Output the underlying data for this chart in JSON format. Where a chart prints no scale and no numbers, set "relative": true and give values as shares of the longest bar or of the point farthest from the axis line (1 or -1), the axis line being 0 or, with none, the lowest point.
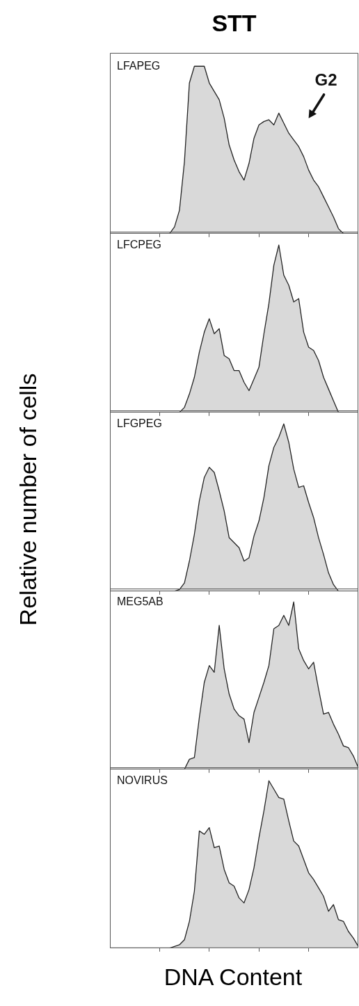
{
  "chart_data": [
    {
      "type": "area",
      "title": "STT",
      "relative": true,
      "color": "#d9d9d9",
      "annotations": [
        "LFAPEG",
        "G2"
      ],
      "categories": [
        null,
        null,
        null,
        null,
        null,
        null,
        null,
        null,
        null,
        null,
        null,
        null,
        null,
        null,
        null,
        null,
        null,
        null,
        null,
        null,
        null,
        null,
        null,
        null,
        null,
        null,
        null,
        null,
        null,
        null,
        null,
        null,
        null,
        null,
        null,
        null,
        null,
        null,
        null,
        null,
        null,
        null,
        null,
        null,
        null,
        null,
        null,
        null,
        null,
        null,
        null
      ],
      "values": [
        0,
        0,
        0,
        0,
        0,
        0,
        0,
        0,
        0,
        0,
        0,
        0,
        0,
        0.04,
        0.14,
        0.43,
        0.9,
        1,
        1,
        1,
        0.9,
        0.85,
        0.8,
        0.69,
        0.53,
        0.44,
        0.37,
        0.32,
        0.42,
        0.57,
        0.65,
        0.67,
        0.68,
        0.65,
        0.72,
        0.66,
        0.6,
        0.56,
        0.52,
        0.46,
        0.38,
        0.32,
        0.28,
        0.22,
        0.16,
        0.1,
        0.03,
        0,
        0,
        0,
        0
      ]
    },
    {
      "type": "area",
      "relative": true,
      "color": "#d9d9d9",
      "annotations": [
        "LFCPEG"
      ],
      "categories": [
        null,
        null,
        null,
        null,
        null,
        null,
        null,
        null,
        null,
        null,
        null,
        null,
        null,
        null,
        null,
        null,
        null,
        null,
        null,
        null,
        null,
        null,
        null,
        null,
        null,
        null,
        null,
        null,
        null,
        null,
        null,
        null,
        null,
        null,
        null,
        null,
        null,
        null,
        null,
        null,
        null,
        null,
        null,
        null,
        null,
        null,
        null,
        null,
        null,
        null,
        null
      ],
      "values": [
        0,
        0,
        0,
        0,
        0,
        0,
        0,
        0,
        0,
        0,
        0,
        0,
        0,
        0,
        0,
        0.03,
        0.11,
        0.21,
        0.36,
        0.48,
        0.56,
        0.47,
        0.5,
        0.34,
        0.32,
        0.25,
        0.25,
        0.18,
        0.13,
        0.2,
        0.27,
        0.47,
        0.65,
        0.88,
        1,
        0.82,
        0.76,
        0.66,
        0.68,
        0.48,
        0.39,
        0.37,
        0.31,
        0.21,
        0.14,
        0.07,
        0,
        0,
        0,
        0,
        0
      ]
    },
    {
      "type": "area",
      "relative": true,
      "ylabel": "Relative number of cells",
      "color": "#d9d9d9",
      "annotations": [
        "LFGPEG"
      ],
      "categories": [
        null,
        null,
        null,
        null,
        null,
        null,
        null,
        null,
        null,
        null,
        null,
        null,
        null,
        null,
        null,
        null,
        null,
        null,
        null,
        null,
        null,
        null,
        null,
        null,
        null,
        null,
        null,
        null,
        null,
        null,
        null,
        null,
        null,
        null,
        null,
        null,
        null,
        null,
        null,
        null,
        null,
        null,
        null,
        null,
        null,
        null,
        null,
        null,
        null,
        null,
        null
      ],
      "values": [
        0,
        0,
        0,
        0,
        0,
        0,
        0,
        0,
        0,
        0,
        0,
        0,
        0,
        0,
        0.01,
        0.05,
        0.18,
        0.34,
        0.54,
        0.68,
        0.74,
        0.71,
        0.6,
        0.48,
        0.32,
        0.29,
        0.26,
        0.18,
        0.2,
        0.33,
        0.42,
        0.56,
        0.75,
        0.86,
        0.92,
        1,
        0.89,
        0.73,
        0.62,
        0.63,
        0.53,
        0.44,
        0.32,
        0.22,
        0.11,
        0.04,
        0,
        0,
        0,
        0,
        0
      ]
    },
    {
      "type": "area",
      "relative": true,
      "color": "#d9d9d9",
      "annotations": [
        "MEG5AB"
      ],
      "categories": [
        null,
        null,
        null,
        null,
        null,
        null,
        null,
        null,
        null,
        null,
        null,
        null,
        null,
        null,
        null,
        null,
        null,
        null,
        null,
        null,
        null,
        null,
        null,
        null,
        null,
        null,
        null,
        null,
        null,
        null,
        null,
        null,
        null,
        null,
        null,
        null,
        null,
        null,
        null,
        null,
        null,
        null,
        null,
        null,
        null,
        null,
        null,
        null,
        null,
        null,
        null
      ],
      "values": [
        0,
        0,
        0,
        0,
        0,
        0,
        0,
        0,
        0,
        0,
        0,
        0,
        0,
        0,
        0,
        0,
        0.06,
        0.07,
        0.31,
        0.52,
        0.62,
        0.58,
        0.86,
        0.6,
        0.45,
        0.36,
        0.32,
        0.3,
        0.16,
        0.34,
        0.43,
        0.52,
        0.62,
        0.84,
        0.86,
        0.92,
        0.86,
        1,
        0.72,
        0.65,
        0.6,
        0.64,
        0.48,
        0.33,
        0.34,
        0.27,
        0.21,
        0.14,
        0.13,
        0.08,
        0.01
      ]
    },
    {
      "type": "area",
      "relative": true,
      "xlabel": "DNA Content",
      "color": "#d9d9d9",
      "annotations": [
        "NOVIRUS"
      ],
      "categories": [
        null,
        null,
        null,
        null,
        null,
        null,
        null,
        null,
        null,
        null,
        null,
        null,
        null,
        null,
        null,
        null,
        null,
        null,
        null,
        null,
        null,
        null,
        null,
        null,
        null,
        null,
        null,
        null,
        null,
        null,
        null,
        null,
        null,
        null,
        null,
        null,
        null,
        null,
        null,
        null,
        null,
        null,
        null,
        null,
        null,
        null,
        null,
        null,
        null,
        null,
        null
      ],
      "values": [
        0,
        0,
        0,
        0,
        0,
        0,
        0,
        0,
        0,
        0,
        0,
        0,
        0,
        0.01,
        0.02,
        0.05,
        0.16,
        0.34,
        0.7,
        0.68,
        0.72,
        0.6,
        0.61,
        0.47,
        0.39,
        0.37,
        0.3,
        0.27,
        0.35,
        0.48,
        0.66,
        0.82,
        1,
        0.95,
        0.9,
        0.89,
        0.76,
        0.64,
        0.61,
        0.53,
        0.45,
        0.41,
        0.36,
        0.31,
        0.22,
        0.26,
        0.17,
        0.16,
        0.1,
        0.06,
        0.01
      ]
    }
  ]
}
